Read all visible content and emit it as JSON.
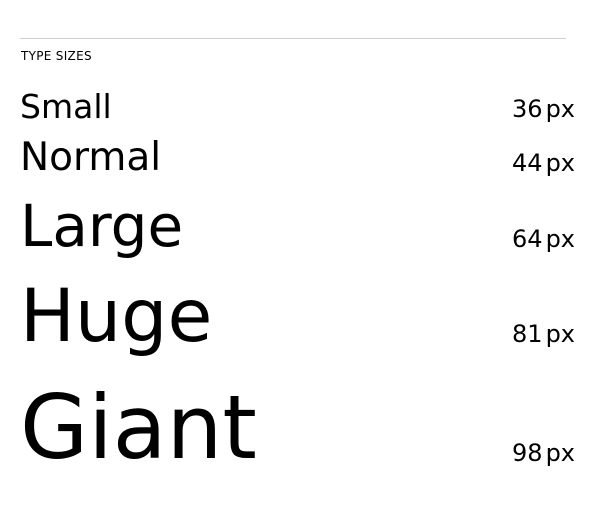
{
  "section": {
    "title": "TYPE SIZES"
  },
  "rows": [
    {
      "sample": "Small",
      "value": "36",
      "unit": "px"
    },
    {
      "sample": "Normal",
      "value": "44",
      "unit": "px"
    },
    {
      "sample": "Large",
      "value": "64",
      "unit": "px"
    },
    {
      "sample": "Huge",
      "value": "81",
      "unit": "px"
    },
    {
      "sample": "Giant",
      "value": "98",
      "unit": "px"
    }
  ]
}
